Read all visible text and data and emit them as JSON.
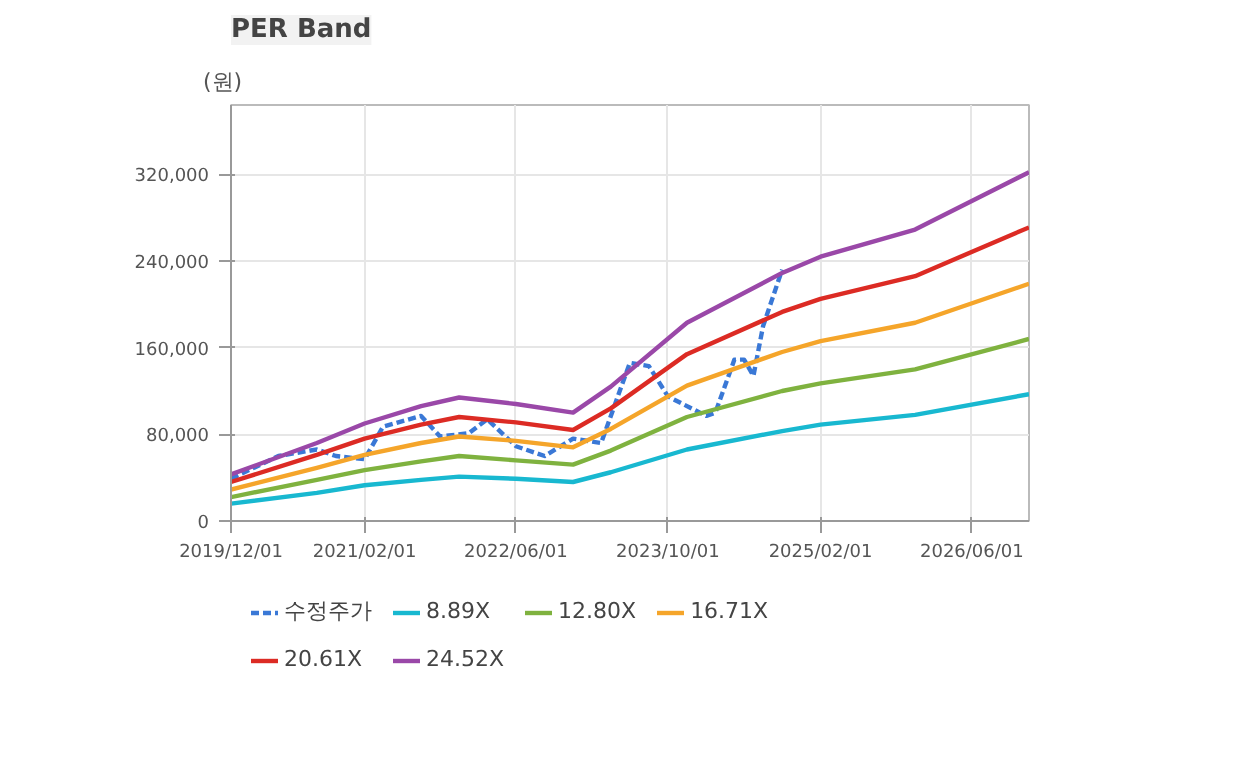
{
  "chart_data": {
    "type": "line",
    "title": "PER Band",
    "ylabel": "(원)",
    "xlim": [
      "2019-12-01",
      "2026-12-01"
    ],
    "ylim": [
      0,
      384000
    ],
    "xticks": [
      {
        "value": "2019-12-01",
        "label": "2019/12/01"
      },
      {
        "value": "2021-02-01",
        "label": "2021/02/01"
      },
      {
        "value": "2022-06-01",
        "label": "2022/06/01"
      },
      {
        "value": "2023-10-01",
        "label": "2023/10/01"
      },
      {
        "value": "2025-02-01",
        "label": "2025/02/01"
      },
      {
        "value": "2026-06-01",
        "label": "2026/06/01"
      }
    ],
    "yticks": [
      0,
      {
        "value": 80000,
        "label": "80,000"
      },
      {
        "value": 160000,
        "label": "160,000"
      },
      {
        "value": 240000,
        "label": "240,000"
      },
      {
        "value": 320000,
        "label": "320,000"
      }
    ],
    "grid": true,
    "legend": "bottom",
    "marker": "none",
    "series": [
      {
        "name": "수정주가",
        "color": "#3a78d6",
        "line_style": "dashed",
        "x": [
          "2019-12",
          "2020-05",
          "2020-09",
          "2020-11",
          "2021-02",
          "2021-04",
          "2021-08",
          "2021-10",
          "2022-01",
          "2022-03",
          "2022-06",
          "2022-09",
          "2022-12",
          "2023-03",
          "2023-06",
          "2023-08",
          "2023-10",
          "2024-02",
          "2024-03",
          "2024-05",
          "2024-06",
          "2024-07",
          "2024-08",
          "2024-10"
        ],
        "values": [
          39000,
          60000,
          66000,
          60000,
          57000,
          87000,
          97000,
          78000,
          81000,
          94000,
          69000,
          60000,
          76000,
          72000,
          146000,
          143000,
          115000,
          97000,
          100000,
          149000,
          149000,
          134000,
          180000,
          232000
        ]
      },
      {
        "name": "8.89X",
        "color": "#18b8d0",
        "values": [
          16000,
          26000,
          33000,
          38000,
          41000,
          39000,
          36000,
          45000,
          66000,
          83000,
          89000,
          98000,
          117000
        ]
      },
      {
        "name": "12.80X",
        "color": "#7fb23f",
        "values": [
          22000,
          38000,
          47000,
          55000,
          60000,
          56000,
          52000,
          65000,
          96000,
          120000,
          127000,
          140000,
          168000
        ]
      },
      {
        "name": "16.71X",
        "color": "#f5a52a",
        "values": [
          29000,
          49000,
          61000,
          72000,
          78000,
          74000,
          68000,
          85000,
          125000,
          156000,
          166000,
          183000,
          219000
        ]
      },
      {
        "name": "20.61X",
        "color": "#dc2b24",
        "values": [
          36000,
          61000,
          76000,
          89000,
          96000,
          91000,
          84000,
          104000,
          154000,
          193000,
          205000,
          226000,
          271000
        ]
      },
      {
        "name": "24.52X",
        "color": "#9a48a8",
        "values": [
          43000,
          72000,
          90000,
          106000,
          114000,
          108000,
          100000,
          124000,
          183000,
          229000,
          244000,
          269000,
          322000
        ]
      }
    ],
    "x": [
      "2019-12",
      "2020-09",
      "2021-02",
      "2021-08",
      "2021-12",
      "2022-06",
      "2022-12",
      "2023-04",
      "2023-12",
      "2024-10",
      "2025-02",
      "2025-12",
      "2026-12"
    ]
  }
}
